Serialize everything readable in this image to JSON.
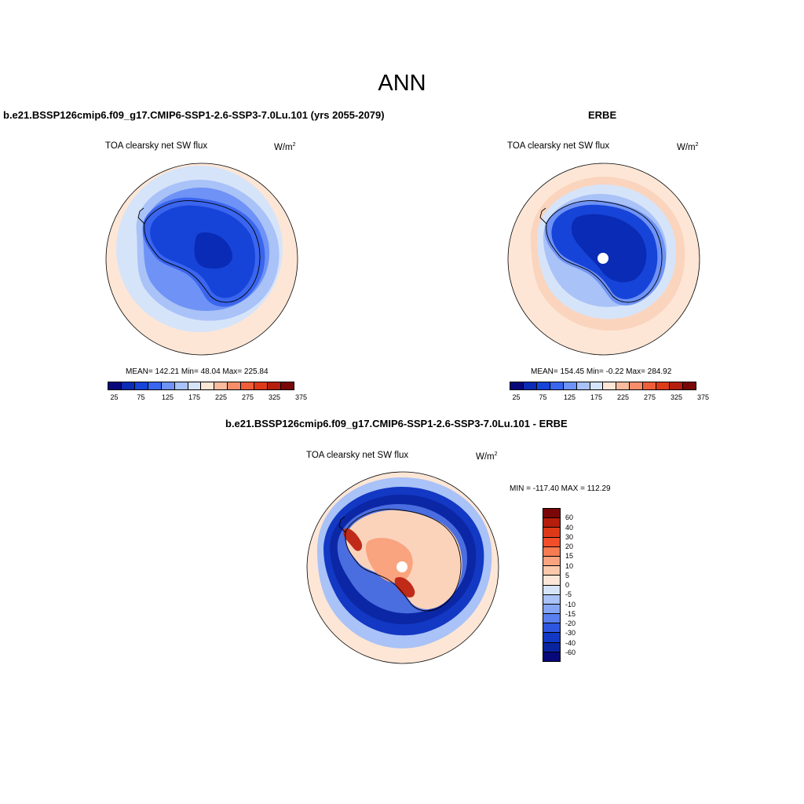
{
  "figure": {
    "title": "ANN"
  },
  "panels": {
    "model": {
      "title": "b.e21.BSSP126cmip6.f09_g17.CMIP6-SSP1-2.6-SSP3-7.0Lu.101 (yrs 2055-2079)",
      "variable": "TOA clearsky net SW flux",
      "units": "W/m",
      "units_exp": "2",
      "stats": "MEAN= 142.21  Min=  48.04  Max= 225.84"
    },
    "obs": {
      "title": "ERBE",
      "variable": "TOA clearsky net SW flux",
      "units": "W/m",
      "units_exp": "2",
      "stats": "MEAN= 154.45  Min=  -0.22  Max= 284.92"
    },
    "diff": {
      "title": "b.e21.BSSP126cmip6.f09_g17.CMIP6-SSP1-2.6-SSP3-7.0Lu.101 - ERBE",
      "variable": "TOA clearsky net SW flux",
      "units": "W/m",
      "units_exp": "2",
      "minmax": "MIN = -117.40 MAX = 112.29"
    }
  },
  "colorbars": {
    "abs": {
      "ticks": [
        "25",
        "75",
        "125",
        "175",
        "225",
        "275",
        "325",
        "375"
      ],
      "colors": [
        "#08087a",
        "#0a2bb5",
        "#1744d8",
        "#3a65ee",
        "#6e92f5",
        "#a9c2f7",
        "#d6e4fa",
        "#fde6d6",
        "#f9bb9e",
        "#f78d6a",
        "#ef5e3a",
        "#de3a19",
        "#b51d0d",
        "#7a0707"
      ]
    },
    "diff": {
      "ticks": [
        "60",
        "40",
        "30",
        "20",
        "15",
        "10",
        "5",
        "0",
        "-5",
        "-10",
        "-15",
        "-20",
        "-30",
        "-40",
        "-60"
      ],
      "colors": [
        "#7a0707",
        "#b51d0d",
        "#de3a19",
        "#f24e2a",
        "#f77b53",
        "#f9a37f",
        "#fbc8ab",
        "#fde6d6",
        "#d6e4fa",
        "#a9c2f7",
        "#86a6f4",
        "#5a80ef",
        "#2f56e0",
        "#1238c4",
        "#0a24a0",
        "#08087a"
      ]
    }
  },
  "map_colors": {
    "ocean_far": "#fde6d6",
    "ring_light": "#d6e4fa",
    "ring_mid": "#a9c2f7",
    "ring_med": "#6e92f5",
    "ice_edge": "#3a65ee",
    "interior": "#1744d8",
    "plateau": "#0a2bb5",
    "diff_interior": "#f9c8ab",
    "diff_peninsula": "#c02a18"
  }
}
